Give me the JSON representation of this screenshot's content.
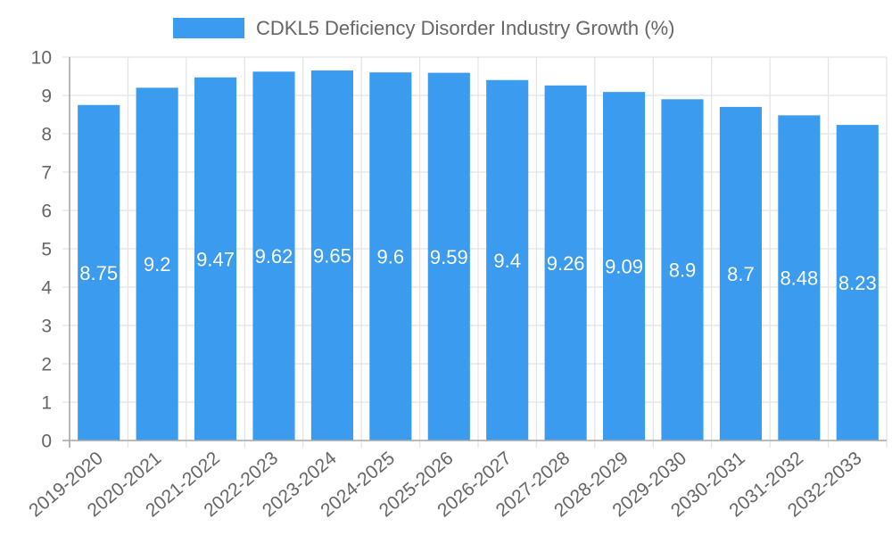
{
  "chart_data": {
    "type": "bar",
    "title": "",
    "xlabel": "",
    "ylabel": "",
    "legend": {
      "position": "top-center",
      "entries": [
        {
          "label": "CDKL5 Deficiency Disorder Industry Growth (%)",
          "color": "#3a9bef"
        }
      ]
    },
    "categories": [
      "2019-2020",
      "2020-2021",
      "2021-2022",
      "2022-2023",
      "2023-2024",
      "2024-2025",
      "2025-2026",
      "2026-2027",
      "2027-2028",
      "2028-2029",
      "2029-2030",
      "2030-2031",
      "2031-2032",
      "2032-2033"
    ],
    "series": [
      {
        "name": "CDKL5 Deficiency Disorder Industry Growth (%)",
        "color": "#3a9bef",
        "values": [
          8.75,
          9.2,
          9.47,
          9.62,
          9.65,
          9.6,
          9.59,
          9.4,
          9.26,
          9.09,
          8.9,
          8.7,
          8.48,
          8.23
        ],
        "labels": [
          "8.75",
          "9.2",
          "9.47",
          "9.62",
          "9.65",
          "9.6",
          "9.59",
          "9.4",
          "9.26",
          "9.09",
          "8.9",
          "8.7",
          "8.48",
          "8.23"
        ]
      }
    ],
    "ylim": [
      0,
      10
    ],
    "yticks": [
      "0",
      "1",
      "2",
      "3",
      "4",
      "5",
      "6",
      "7",
      "8",
      "9",
      "10"
    ],
    "grid": true,
    "data_labels": "inside-center",
    "xtick_rotation": "diagonal"
  }
}
